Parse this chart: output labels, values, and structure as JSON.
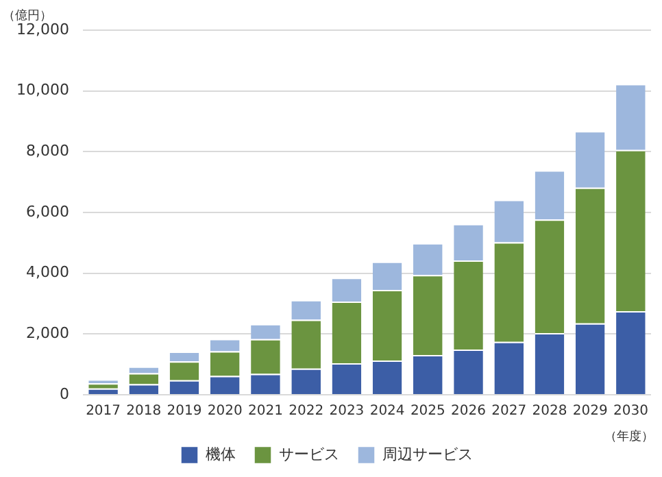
{
  "chart_data": {
    "type": "bar",
    "stacked": true,
    "ylabel": "（億円）",
    "xlabel": "（年度）",
    "categories": [
      "2017",
      "2018",
      "2019",
      "2020",
      "2021",
      "2022",
      "2023",
      "2024",
      "2025",
      "2026",
      "2027",
      "2028",
      "2029",
      "2030"
    ],
    "series": [
      {
        "name": "機体",
        "color": "#3c5ea6",
        "values": [
          210,
          350,
          480,
          620,
          690,
          860,
          1040,
          1130,
          1310,
          1490,
          1740,
          2030,
          2350,
          2750
        ]
      },
      {
        "name": "サービス",
        "color": "#6b9440",
        "values": [
          170,
          360,
          620,
          810,
          1140,
          1610,
          2030,
          2320,
          2630,
          2930,
          3280,
          3740,
          4470,
          5310
        ]
      },
      {
        "name": "周辺サービス",
        "color": "#9db7dd",
        "values": [
          130,
          220,
          320,
          410,
          500,
          650,
          780,
          930,
          1050,
          1200,
          1400,
          1620,
          1860,
          2170
        ]
      }
    ],
    "ylim": [
      0,
      12000
    ],
    "yticks": [
      0,
      {
        "value": 2000,
        "label": "2,000"
      },
      {
        "value": 4000,
        "label": "4,000"
      },
      {
        "value": 6000,
        "label": "6,000"
      },
      {
        "value": 8000,
        "label": "8,000"
      },
      {
        "value": 10000,
        "label": "10,000"
      },
      {
        "value": 12000,
        "label": "12,000"
      }
    ],
    "grid": "y",
    "legend": "bottom"
  }
}
